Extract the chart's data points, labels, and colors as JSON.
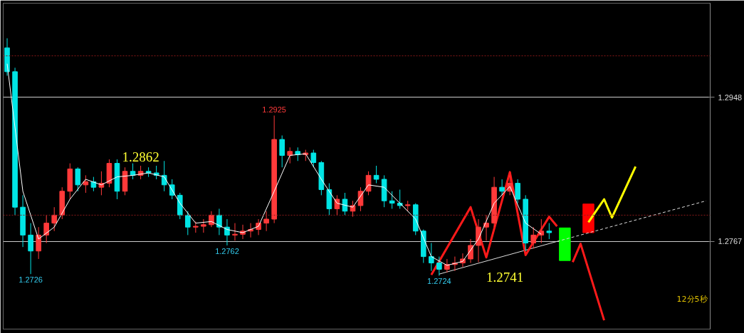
{
  "chart_data": {
    "type": "candlestick",
    "categories": [
      null,
      null,
      null,
      null,
      null,
      null,
      null,
      null,
      null,
      null,
      null,
      null,
      null,
      null,
      null,
      null,
      null,
      null,
      null,
      null,
      null,
      null,
      null,
      null,
      null,
      null,
      null,
      null,
      null,
      null,
      null,
      null,
      null,
      null,
      null,
      null,
      null,
      null,
      null,
      null,
      null,
      null,
      null,
      null,
      null,
      null,
      null,
      null,
      null,
      null,
      null,
      null,
      null,
      null,
      null,
      null,
      null,
      null,
      null,
      null,
      null,
      null,
      null,
      null,
      null,
      null,
      null,
      null,
      null,
      null,
      null,
      null,
      null,
      null,
      null,
      null,
      null,
      null,
      null,
      null,
      null,
      null,
      null,
      null,
      null,
      null,
      null,
      null,
      null,
      null
    ],
    "ohlc": [
      [
        1.301,
        1.3022,
        1.2975,
        1.298
      ],
      [
        1.298,
        1.2985,
        1.28,
        1.281
      ],
      [
        1.281,
        1.2825,
        1.276,
        1.2775
      ],
      [
        1.2775,
        1.279,
        1.2726,
        1.2755
      ],
      [
        1.2755,
        1.2785,
        1.2745,
        1.2775
      ],
      [
        1.2775,
        1.28,
        1.2765,
        1.279
      ],
      [
        1.279,
        1.281,
        1.278,
        1.28
      ],
      [
        1.28,
        1.2835,
        1.2795,
        1.283
      ],
      [
        1.283,
        1.2865,
        1.282,
        1.2858
      ],
      [
        1.2858,
        1.286,
        1.283,
        1.2838
      ],
      [
        1.2838,
        1.285,
        1.2828,
        1.2842
      ],
      [
        1.2842,
        1.2848,
        1.283,
        1.2835
      ],
      [
        1.2835,
        1.2855,
        1.2825,
        1.284
      ],
      [
        1.284,
        1.287,
        1.2835,
        1.2865
      ],
      [
        1.2865,
        1.287,
        1.282,
        1.283
      ],
      [
        1.283,
        1.286,
        1.2825,
        1.2855
      ],
      [
        1.2855,
        1.2865,
        1.2845,
        1.285
      ],
      [
        1.285,
        1.2862,
        1.2845,
        1.2855
      ],
      [
        1.2855,
        1.286,
        1.2848,
        1.2853
      ],
      [
        1.2853,
        1.2862,
        1.2845,
        1.285
      ],
      [
        1.285,
        1.2868,
        1.283,
        1.2838
      ],
      [
        1.2838,
        1.2845,
        1.282,
        1.2825
      ],
      [
        1.2825,
        1.2828,
        1.2795,
        1.28
      ],
      [
        1.28,
        1.2805,
        1.2775,
        1.2785
      ],
      [
        1.2785,
        1.2792,
        1.2778,
        1.2786
      ],
      [
        1.2786,
        1.2795,
        1.2778,
        1.2788
      ],
      [
        1.2788,
        1.2805,
        1.2785,
        1.28
      ],
      [
        1.28,
        1.2808,
        1.2775,
        1.2785
      ],
      [
        1.2785,
        1.2795,
        1.2762,
        1.2775
      ],
      [
        1.2775,
        1.279,
        1.2768,
        1.2776
      ],
      [
        1.2776,
        1.2788,
        1.277,
        1.278
      ],
      [
        1.278,
        1.279,
        1.2772,
        1.2782
      ],
      [
        1.2782,
        1.2795,
        1.2775,
        1.279
      ],
      [
        1.279,
        1.2805,
        1.278,
        1.2795
      ],
      [
        1.2795,
        1.2925,
        1.279,
        1.2895
      ],
      [
        1.2895,
        1.29,
        1.286,
        1.2875
      ],
      [
        1.2875,
        1.2885,
        1.2865,
        1.288
      ],
      [
        1.288,
        1.2885,
        1.2868,
        1.2876
      ],
      [
        1.2876,
        1.2882,
        1.2868,
        1.2878
      ],
      [
        1.2878,
        1.2882,
        1.286,
        1.2866
      ],
      [
        1.2866,
        1.2868,
        1.2825,
        1.2832
      ],
      [
        1.2832,
        1.284,
        1.28,
        1.2808
      ],
      [
        1.2808,
        1.2825,
        1.28,
        1.282
      ],
      [
        1.282,
        1.2828,
        1.28,
        1.2805
      ],
      [
        1.2805,
        1.2818,
        1.2798,
        1.2812
      ],
      [
        1.2812,
        1.2835,
        1.2805,
        1.283
      ],
      [
        1.283,
        1.2855,
        1.2825,
        1.285
      ],
      [
        1.285,
        1.2862,
        1.284,
        1.2845
      ],
      [
        1.2845,
        1.285,
        1.281,
        1.2818
      ],
      [
        1.2818,
        1.283,
        1.2808,
        1.2815
      ],
      [
        1.2815,
        1.2832,
        1.2808,
        1.2812
      ],
      [
        1.2812,
        1.2818,
        1.2805,
        1.2813
      ],
      [
        1.2813,
        1.2815,
        1.2775,
        1.278
      ],
      [
        1.278,
        1.2782,
        1.274,
        1.2748
      ],
      [
        1.2748,
        1.2765,
        1.273,
        1.274
      ],
      [
        1.274,
        1.2748,
        1.2724,
        1.2732
      ],
      [
        1.2732,
        1.2745,
        1.2728,
        1.2738
      ],
      [
        1.2738,
        1.2748,
        1.273,
        1.274
      ],
      [
        1.274,
        1.2752,
        1.2735,
        1.2745
      ],
      [
        1.2745,
        1.277,
        1.274,
        1.2762
      ],
      [
        1.2762,
        1.2795,
        1.2741,
        1.2785
      ],
      [
        1.2785,
        1.28,
        1.2768,
        1.279
      ],
      [
        1.279,
        1.2848,
        1.2785,
        1.2835
      ],
      [
        1.2835,
        1.2845,
        1.2825,
        1.283
      ],
      [
        1.283,
        1.285,
        1.2825,
        1.284
      ],
      [
        1.284,
        1.2845,
        1.2815,
        1.282
      ],
      [
        1.282,
        1.2825,
        1.2755,
        1.2765
      ],
      [
        1.2765,
        1.2785,
        1.2758,
        1.2775
      ],
      [
        1.2775,
        1.2795,
        1.2765,
        1.278
      ],
      [
        1.278,
        1.279,
        1.277,
        1.2778
      ],
      null,
      null,
      null,
      null,
      null,
      null,
      null,
      null,
      null,
      null,
      null,
      null,
      null,
      null,
      null,
      null,
      null,
      null,
      null,
      null
    ],
    "series": [
      {
        "type": "line",
        "color": "#ffffff",
        "values": [
          1.299,
          null,
          1.283,
          null,
          1.277,
          null,
          1.2785,
          null,
          1.282,
          null,
          1.2845,
          null,
          1.2838,
          null,
          1.2848,
          null,
          1.285,
          null,
          1.2853,
          null,
          1.2848,
          null,
          1.2815,
          null,
          1.279,
          null,
          1.2792,
          null,
          1.2782,
          null,
          1.2778,
          null,
          1.2786,
          null,
          1.283,
          null,
          1.2875,
          null,
          1.2877,
          null,
          1.2845,
          null,
          1.2815,
          null,
          1.281,
          null,
          1.2838,
          null,
          1.2835,
          null,
          1.2815,
          null,
          1.2795,
          null,
          1.2748,
          null,
          1.2737,
          null,
          1.2742,
          null,
          1.277,
          null,
          1.2815,
          null,
          1.2836,
          null,
          1.279,
          null,
          1.2776,
          null,
          null,
          null,
          null,
          null,
          null,
          null,
          null,
          null,
          null,
          null,
          null,
          null,
          null,
          null,
          null,
          null,
          null,
          null,
          null,
          null
        ]
      },
      {
        "type": "line",
        "color": "#dddddd",
        "values": [
          null,
          null,
          null,
          null,
          null,
          null,
          null,
          null,
          null,
          null,
          null,
          null,
          null,
          null,
          null,
          null,
          null,
          null,
          null,
          null,
          null,
          null,
          null,
          null,
          null,
          null,
          null,
          null,
          null,
          null,
          null,
          null,
          null,
          null,
          null,
          null,
          null,
          null,
          null,
          null,
          null,
          null,
          null,
          null,
          null,
          null,
          null,
          null,
          null,
          null,
          null,
          null,
          null,
          null,
          null,
          1.2726,
          null,
          null,
          null,
          null,
          null,
          null,
          null,
          null,
          null,
          null,
          null,
          null,
          null,
          null,
          1.2767,
          null,
          null,
          null,
          null,
          null,
          null,
          null,
          null,
          null,
          null,
          null,
          null,
          null,
          null,
          null,
          null,
          null,
          null,
          null
        ]
      },
      {
        "type": "line",
        "color": "#dddddd",
        "line_style": "dashed",
        "values": [
          null,
          null,
          null,
          null,
          null,
          null,
          null,
          null,
          null,
          null,
          null,
          null,
          null,
          null,
          null,
          null,
          null,
          null,
          null,
          null,
          null,
          null,
          null,
          null,
          null,
          null,
          null,
          null,
          null,
          null,
          null,
          null,
          null,
          null,
          null,
          null,
          null,
          null,
          null,
          null,
          null,
          null,
          null,
          null,
          null,
          null,
          null,
          null,
          null,
          null,
          null,
          null,
          null,
          null,
          null,
          null,
          null,
          null,
          null,
          null,
          null,
          null,
          null,
          null,
          null,
          null,
          null,
          null,
          null,
          null,
          1.2767,
          null,
          null,
          null,
          null,
          null,
          null,
          null,
          null,
          null,
          null,
          null,
          null,
          null,
          null,
          null,
          null,
          null,
          null,
          1.2818
        ]
      },
      {
        "type": "line",
        "color": "#ff1a1a",
        "values": [
          null,
          null,
          null,
          null,
          null,
          null,
          null,
          null,
          null,
          null,
          null,
          null,
          null,
          null,
          null,
          null,
          null,
          null,
          null,
          null,
          null,
          null,
          null,
          null,
          null,
          null,
          null,
          null,
          null,
          null,
          null,
          null,
          null,
          null,
          null,
          null,
          null,
          null,
          null,
          null,
          null,
          null,
          null,
          null,
          null,
          null,
          null,
          null,
          null,
          null,
          null,
          null,
          null,
          null,
          1.2725,
          null,
          null,
          null,
          null,
          1.281,
          null,
          1.2747,
          null,
          null,
          1.2854,
          null,
          1.275,
          null,
          null,
          1.2798,
          1.2786,
          null,
          null,
          null,
          null,
          null,
          null,
          null,
          null,
          null,
          null,
          null,
          null,
          null,
          null,
          null,
          null,
          null,
          null,
          null
        ]
      },
      {
        "type": "line",
        "color": "#ff1a1a",
        "values": [
          null,
          null,
          null,
          null,
          null,
          null,
          null,
          null,
          null,
          null,
          null,
          null,
          null,
          null,
          null,
          null,
          null,
          null,
          null,
          null,
          null,
          null,
          null,
          null,
          null,
          null,
          null,
          null,
          null,
          null,
          null,
          null,
          null,
          null,
          null,
          null,
          null,
          null,
          null,
          null,
          null,
          null,
          null,
          null,
          null,
          null,
          null,
          null,
          null,
          null,
          null,
          null,
          null,
          null,
          null,
          null,
          null,
          null,
          null,
          null,
          null,
          null,
          null,
          null,
          null,
          null,
          null,
          null,
          null,
          null,
          null,
          null,
          1.2741,
          1.2764,
          null,
          null,
          1.2668,
          null,
          null,
          null,
          null,
          null,
          null,
          null,
          null,
          null,
          null,
          null,
          null,
          null
        ]
      },
      {
        "type": "line",
        "color": "#ffff00",
        "values": [
          null,
          null,
          null,
          null,
          null,
          null,
          null,
          null,
          null,
          null,
          null,
          null,
          null,
          null,
          null,
          null,
          null,
          null,
          null,
          null,
          null,
          null,
          null,
          null,
          null,
          null,
          null,
          null,
          null,
          null,
          null,
          null,
          null,
          null,
          null,
          null,
          null,
          null,
          null,
          null,
          null,
          null,
          null,
          null,
          null,
          null,
          null,
          null,
          null,
          null,
          null,
          null,
          null,
          null,
          null,
          null,
          null,
          null,
          null,
          null,
          null,
          null,
          null,
          null,
          null,
          null,
          null,
          null,
          null,
          null,
          null,
          null,
          null,
          null,
          1.2791,
          null,
          1.282,
          1.2797,
          null,
          null,
          1.2861,
          null,
          null,
          null,
          null,
          null,
          null,
          null,
          null,
          null
        ]
      },
      {
        "type": "bar",
        "base": [
          null,
          null,
          null,
          null,
          null,
          null,
          null,
          null,
          null,
          null,
          null,
          null,
          null,
          null,
          null,
          null,
          null,
          null,
          null,
          null,
          null,
          null,
          null,
          null,
          null,
          null,
          null,
          null,
          null,
          null,
          null,
          null,
          null,
          null,
          null,
          null,
          null,
          null,
          null,
          null,
          null,
          null,
          null,
          null,
          null,
          null,
          null,
          null,
          null,
          null,
          null,
          null,
          null,
          null,
          null,
          null,
          null,
          null,
          null,
          null,
          null,
          null,
          null,
          null,
          null,
          null,
          null,
          null,
          null,
          null,
          null,
          1.2743,
          null,
          null,
          1.2778,
          null,
          null,
          null,
          null,
          null,
          null,
          null,
          null,
          null,
          null,
          null,
          null,
          null,
          null,
          null
        ],
        "values": [
          null,
          null,
          null,
          null,
          null,
          null,
          null,
          null,
          null,
          null,
          null,
          null,
          null,
          null,
          null,
          null,
          null,
          null,
          null,
          null,
          null,
          null,
          null,
          null,
          null,
          null,
          null,
          null,
          null,
          null,
          null,
          null,
          null,
          null,
          null,
          null,
          null,
          null,
          null,
          null,
          null,
          null,
          null,
          null,
          null,
          null,
          null,
          null,
          null,
          null,
          null,
          null,
          null,
          null,
          null,
          null,
          null,
          null,
          null,
          null,
          null,
          null,
          null,
          null,
          null,
          null,
          null,
          null,
          null,
          null,
          null,
          0.0041,
          null,
          null,
          0.0036,
          null,
          null,
          null,
          null,
          null,
          null,
          null,
          null,
          null,
          null,
          null,
          null,
          null,
          null,
          null
        ],
        "colors": [
          null,
          null,
          null,
          null,
          null,
          null,
          null,
          null,
          null,
          null,
          null,
          null,
          null,
          null,
          null,
          null,
          null,
          null,
          null,
          null,
          null,
          null,
          null,
          null,
          null,
          null,
          null,
          null,
          null,
          null,
          null,
          null,
          null,
          null,
          null,
          null,
          null,
          null,
          null,
          null,
          null,
          null,
          null,
          null,
          null,
          null,
          null,
          null,
          null,
          null,
          null,
          null,
          null,
          null,
          null,
          null,
          null,
          null,
          null,
          null,
          null,
          null,
          null,
          null,
          null,
          null,
          null,
          null,
          null,
          null,
          null,
          "#00ff00",
          null,
          null,
          "#ff0000",
          null,
          null,
          null,
          null,
          null,
          null,
          null,
          null,
          null,
          null,
          null,
          null,
          null,
          null,
          null
        ]
      }
    ],
    "ylim": [
      1.2657,
      1.3066
    ],
    "yticks": [
      1.2948,
      1.2767
    ],
    "tick_labels": "y",
    "grid": "y",
    "ref_lines": [
      {
        "axis": "y",
        "value": 1.3,
        "color": "#8b1a1a",
        "line_style": "dotted"
      },
      {
        "axis": "y",
        "value": 1.28,
        "color": "#8b1a1a",
        "line_style": "dotted"
      }
    ],
    "annotations": [
      {
        "text": "1.2925",
        "y": 1.2925
      },
      {
        "text": "1.2726",
        "y": 1.2726
      },
      {
        "text": "1.2762",
        "y": 1.2762
      },
      {
        "text": "1.2862",
        "y": 1.2862
      },
      {
        "text": "1.2724",
        "y": 1.2724
      },
      "1.2741",
      "12分5秒"
    ]
  }
}
